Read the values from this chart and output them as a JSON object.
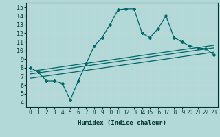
{
  "xlabel": "Humidex (Indice chaleur)",
  "ylabel": "",
  "bg_color": "#b2d8d8",
  "grid_color": "#d4eaea",
  "line_color": "#006666",
  "xlim": [
    -0.5,
    23.5
  ],
  "ylim": [
    3.5,
    15.5
  ],
  "xticks": [
    0,
    1,
    2,
    3,
    4,
    5,
    6,
    7,
    8,
    9,
    10,
    11,
    12,
    13,
    14,
    15,
    16,
    17,
    18,
    19,
    20,
    21,
    22,
    23
  ],
  "yticks": [
    4,
    5,
    6,
    7,
    8,
    9,
    10,
    11,
    12,
    13,
    14,
    15
  ],
  "main_x": [
    0,
    1,
    2,
    3,
    4,
    5,
    6,
    7,
    8,
    9,
    10,
    11,
    12,
    13,
    14,
    15,
    16,
    17,
    18,
    19,
    20,
    21,
    22,
    23
  ],
  "main_y": [
    8.0,
    7.5,
    6.5,
    6.5,
    6.2,
    4.3,
    6.5,
    8.5,
    10.5,
    11.5,
    13.0,
    14.7,
    14.8,
    14.8,
    12.0,
    11.5,
    12.5,
    14.0,
    11.5,
    11.0,
    10.5,
    10.3,
    10.2,
    9.5
  ],
  "line2_x": [
    0,
    23
  ],
  "line2_y": [
    7.3,
    10.3
  ],
  "line3_x": [
    0,
    23
  ],
  "line3_y": [
    6.8,
    9.8
  ],
  "line4_x": [
    0,
    23
  ],
  "line4_y": [
    7.6,
    10.6
  ]
}
